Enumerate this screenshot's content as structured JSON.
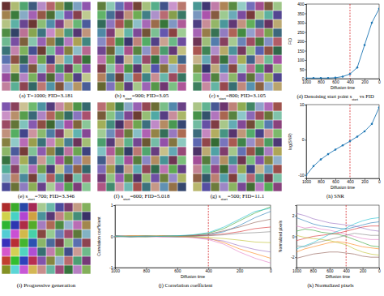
{
  "figure": {
    "panels": [
      {
        "caption": {
          "prefix": "(a) T=1000; FID=3.181"
        }
      },
      {
        "caption": {
          "prefix": "(b) s",
          "sub": "start",
          "suffix": "=900; FID=3.05"
        }
      },
      {
        "caption": {
          "prefix": "(c) s",
          "sub": "start",
          "suffix": "=800; FID=3.105"
        }
      },
      {
        "caption": {
          "prefix": "(e) s",
          "sub": "start",
          "suffix": "=700; FID=3.346"
        }
      },
      {
        "caption": {
          "prefix": "(f) s",
          "sub": "start",
          "suffix": "=600; FID=5.018"
        }
      },
      {
        "caption": {
          "prefix": "(g) s",
          "sub": "start",
          "suffix": "=500; FID=11.1"
        }
      },
      {
        "caption": {
          "prefix": "(i) Progressive generation"
        }
      }
    ]
  },
  "chart_data": [
    {
      "type": "line",
      "title": {
        "prefix": "(d) Denoising start point s",
        "sub": "start",
        "suffix": " vs FID"
      },
      "x_label": "Diffusion time",
      "y_label": "FID",
      "x": [
        1000,
        900,
        800,
        700,
        600,
        500,
        400,
        300,
        200,
        100,
        0
      ],
      "xlim": [
        1000,
        0
      ],
      "xticks": [
        1000,
        800,
        600,
        400,
        200,
        0
      ],
      "ylim": [
        0,
        400
      ],
      "yticks": [
        0,
        50,
        100,
        150,
        200,
        250,
        300,
        350,
        400
      ],
      "vline": 400,
      "series": [
        {
          "color": "#1f77b4",
          "marker": "circle",
          "values": [
            3.181,
            3.05,
            3.105,
            3.346,
            5.018,
            11.1,
            25,
            60,
            180,
            300,
            375
          ]
        }
      ]
    },
    {
      "type": "line",
      "title": {
        "prefix": "(h) SNR"
      },
      "x_label": "Diffusion time",
      "y_label": "log(SNR)",
      "x": [
        1000,
        900,
        800,
        700,
        600,
        500,
        400,
        300,
        200,
        100,
        0
      ],
      "xlim": [
        1000,
        0
      ],
      "xticks": [
        1000,
        800,
        600,
        400,
        200,
        0
      ],
      "ylim": [
        -11,
        10
      ],
      "yticks": [
        -10,
        0,
        10
      ],
      "vline": 400,
      "series": [
        {
          "color": "#1f77b4",
          "marker": "circle",
          "values": [
            -10.1,
            -7.5,
            -5.6,
            -4.1,
            -2.8,
            -1.6,
            -0.4,
            0.9,
            2.4,
            4.5,
            9.2
          ]
        }
      ]
    },
    {
      "type": "line",
      "title": {
        "prefix": "(j) Correlation coefficient"
      },
      "x_label": "Diffusion time",
      "y_label": "Correlation coefficient",
      "x": [
        1000,
        900,
        800,
        700,
        600,
        500,
        400,
        300,
        200,
        100,
        0
      ],
      "xlim": [
        1000,
        0
      ],
      "xticks": [
        1000,
        800,
        600,
        400,
        200,
        0
      ],
      "ylim": [
        -1,
        1
      ],
      "yticks": [
        -1,
        0,
        1
      ],
      "vline": 400,
      "series": [
        {
          "color": "#1f77b4",
          "values": [
            0.02,
            -0.01,
            0.01,
            0.0,
            -0.02,
            0.01,
            0.05,
            0.15,
            0.35,
            0.6,
            0.8
          ]
        },
        {
          "color": "#ff7f0e",
          "values": [
            -0.01,
            0.02,
            0.0,
            0.01,
            0.0,
            -0.03,
            -0.06,
            -0.2,
            -0.4,
            -0.55,
            -0.7
          ]
        },
        {
          "color": "#2ca02c",
          "values": [
            0.01,
            0.0,
            -0.02,
            0.01,
            0.02,
            0.03,
            0.1,
            0.25,
            0.5,
            0.75,
            0.95
          ]
        },
        {
          "color": "#d62728",
          "values": [
            0.0,
            0.01,
            0.02,
            -0.01,
            0.0,
            0.02,
            0.03,
            0.08,
            0.15,
            0.25,
            0.3
          ]
        },
        {
          "color": "#9467bd",
          "values": [
            -0.02,
            0.0,
            0.01,
            0.0,
            -0.01,
            -0.02,
            -0.08,
            -0.15,
            -0.3,
            -0.42,
            -0.5
          ]
        },
        {
          "color": "#8c564b",
          "values": [
            0.01,
            -0.02,
            0.0,
            0.02,
            0.01,
            0.04,
            0.07,
            0.18,
            0.3,
            0.45,
            0.55
          ]
        },
        {
          "color": "#e377c2",
          "values": [
            0.0,
            0.0,
            -0.01,
            -0.02,
            -0.01,
            -0.04,
            -0.1,
            -0.25,
            -0.5,
            -0.7,
            -0.85
          ]
        },
        {
          "color": "#7f7f7f",
          "values": [
            0.02,
            0.01,
            0.0,
            0.0,
            0.01,
            0.0,
            0.02,
            0.05,
            0.1,
            0.12,
            0.15
          ]
        },
        {
          "color": "#bcbd22",
          "values": [
            -0.01,
            0.01,
            0.02,
            0.01,
            -0.01,
            -0.01,
            -0.03,
            -0.07,
            -0.12,
            -0.18,
            -0.2
          ]
        },
        {
          "color": "#17becf",
          "values": [
            0.0,
            -0.01,
            0.01,
            0.0,
            0.02,
            0.05,
            0.12,
            0.3,
            0.55,
            0.8,
            0.9
          ]
        }
      ]
    },
    {
      "type": "line",
      "title": {
        "prefix": "(k) Normalized pixels"
      },
      "x_label": "Diffusion time",
      "y_label": "Normalized pixels",
      "x": [
        1000,
        900,
        800,
        700,
        600,
        500,
        400,
        300,
        200,
        100,
        0
      ],
      "xlim": [
        1000,
        0
      ],
      "xticks": [
        1000,
        800,
        600,
        400,
        200,
        0
      ],
      "ylim": [
        -3,
        3
      ],
      "yticks": [
        -2,
        0,
        2
      ],
      "vline": 400,
      "series": [
        {
          "color": "#1f77b4",
          "values": [
            1.8,
            1.5,
            1.2,
            1.0,
            0.9,
            0.8,
            0.7,
            0.9,
            1.1,
            1.3,
            1.4
          ]
        },
        {
          "color": "#ff7f0e",
          "values": [
            -1.5,
            -1.2,
            -1.0,
            -0.8,
            -0.6,
            -0.5,
            -0.6,
            -0.8,
            -1.0,
            -1.1,
            -1.2
          ]
        },
        {
          "color": "#2ca02c",
          "values": [
            0.5,
            0.7,
            0.6,
            0.4,
            0.3,
            0.2,
            0.0,
            -0.3,
            -0.6,
            -0.9,
            -1.0
          ]
        },
        {
          "color": "#d62728",
          "values": [
            -0.4,
            -0.2,
            0.0,
            0.1,
            0.2,
            0.3,
            0.5,
            0.7,
            0.9,
            1.0,
            1.0
          ]
        },
        {
          "color": "#9467bd",
          "values": [
            2.2,
            2.0,
            1.7,
            1.5,
            1.3,
            1.2,
            1.1,
            1.0,
            0.8,
            0.6,
            0.5
          ]
        },
        {
          "color": "#8c564b",
          "values": [
            -2.1,
            -1.9,
            -1.7,
            -1.6,
            -1.5,
            -1.5,
            -1.6,
            -1.7,
            -1.9,
            -2.0,
            -2.0
          ]
        },
        {
          "color": "#e377c2",
          "values": [
            1.0,
            0.8,
            0.9,
            0.7,
            0.6,
            0.4,
            0.2,
            0.0,
            -0.2,
            -0.3,
            -0.3
          ]
        },
        {
          "color": "#7f7f7f",
          "values": [
            -0.9,
            -1.0,
            -0.7,
            -0.5,
            -0.3,
            -0.1,
            0.1,
            0.3,
            0.2,
            0.1,
            0.1
          ]
        },
        {
          "color": "#bcbd22",
          "values": [
            0.1,
            -0.1,
            -0.2,
            -0.3,
            -0.4,
            -0.6,
            -0.8,
            -1.2,
            -1.5,
            -1.7,
            -1.8
          ]
        },
        {
          "color": "#17becf",
          "values": [
            -1.2,
            -0.9,
            -0.6,
            -0.2,
            0.2,
            0.5,
            0.8,
            1.2,
            1.5,
            1.7,
            1.8
          ]
        }
      ]
    }
  ]
}
